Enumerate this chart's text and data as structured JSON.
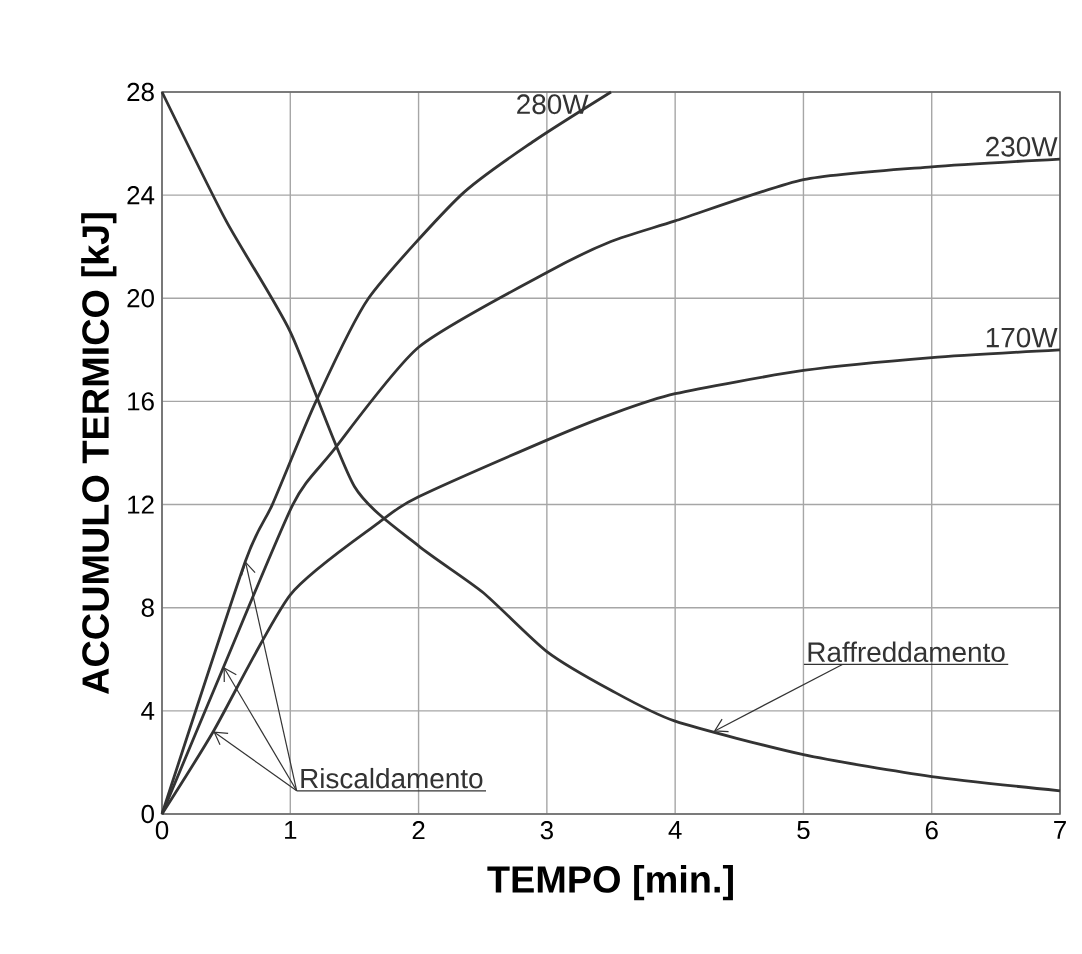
{
  "chart_data": {
    "type": "line",
    "xlabel": "TEMPO [min.]",
    "ylabel": "ACCUMULO TERMICO [kJ]",
    "xlim": [
      0,
      7
    ],
    "ylim": [
      0,
      28
    ],
    "xticks": [
      0,
      1,
      2,
      3,
      4,
      5,
      6,
      7
    ],
    "yticks": [
      0,
      4,
      8,
      12,
      16,
      20,
      24,
      28
    ],
    "grid": true,
    "legend": false,
    "marker": "none",
    "line_style": "solid",
    "series": [
      {
        "name": "280W",
        "color": "#333333",
        "x": [
          0,
          0.65,
          0.86,
          1.2,
          1.61,
          2.33,
          2.9,
          3.5
        ],
        "values": [
          0,
          9.8,
          12,
          16,
          20,
          24,
          26.1,
          28
        ]
      },
      {
        "name": "230W",
        "color": "#333333",
        "x": [
          0,
          0.48,
          1.02,
          1.32,
          2,
          3,
          3.5,
          4,
          5,
          6,
          7
        ],
        "values": [
          0,
          5.7,
          12,
          14,
          18.1,
          21,
          22.2,
          23,
          24.6,
          25.1,
          25.4
        ]
      },
      {
        "name": "170W",
        "color": "#333333",
        "x": [
          0,
          0.4,
          1,
          1.69,
          2,
          3,
          3.5,
          4,
          5,
          6,
          7
        ],
        "values": [
          0,
          3.2,
          8.5,
          11.3,
          12.3,
          14.5,
          15.5,
          16.3,
          17.2,
          17.7,
          18
        ]
      },
      {
        "color": "#333333",
        "x": [
          0,
          0.5,
          1,
          1.5,
          2,
          2.5,
          3,
          3.5,
          4,
          5,
          6,
          7
        ],
        "values": [
          28,
          23,
          18.7,
          12.7,
          10.4,
          8.6,
          6.3,
          4.8,
          3.6,
          2.3,
          1.45,
          0.9
        ]
      }
    ],
    "annotations": [
      {
        "text": "Riscaldamento",
        "x": 0.48,
        "y": 5.7
      },
      {
        "text": "Raffreddamento",
        "x": 4.3,
        "y": 3.2
      }
    ]
  }
}
